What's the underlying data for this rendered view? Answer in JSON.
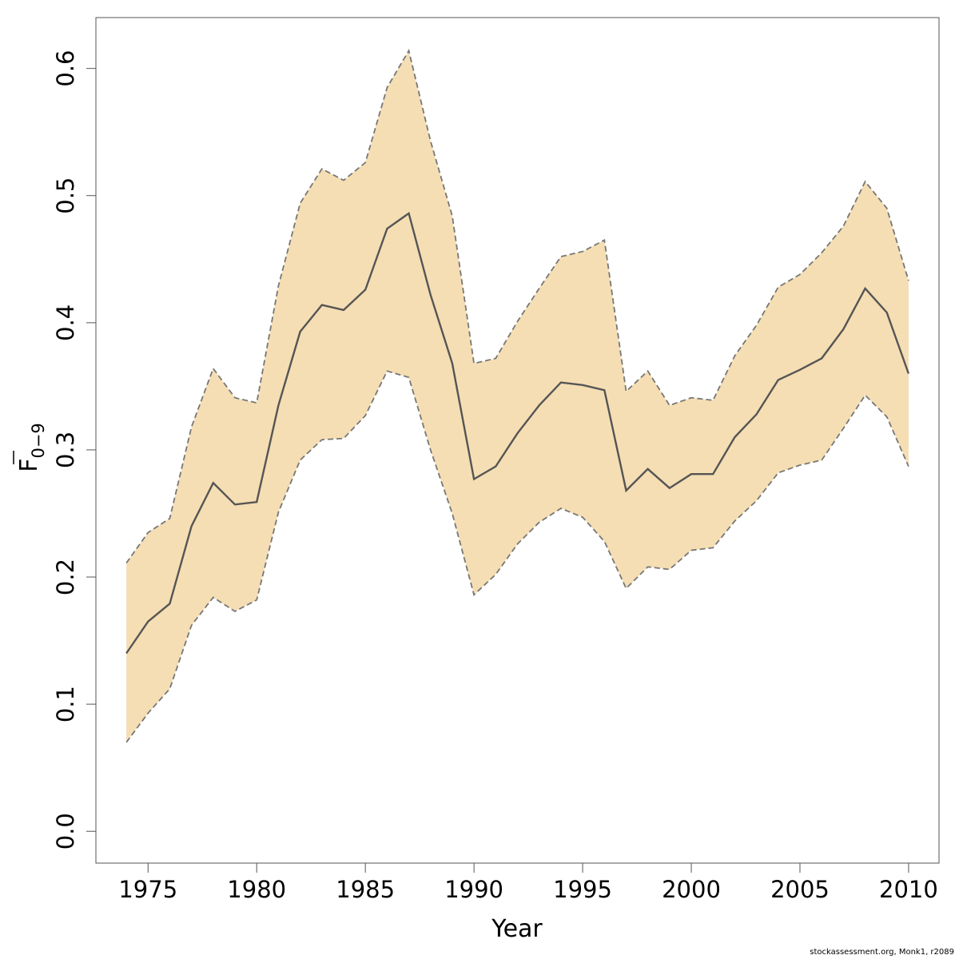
{
  "chart_data": {
    "type": "area",
    "xlabel": "Year",
    "ylabel_main": "F",
    "ylabel_subscript": "0−9",
    "xlim": [
      1972.6,
      2011.4
    ],
    "ylim": [
      -0.025,
      0.64
    ],
    "x_ticks": [
      1975,
      1980,
      1985,
      1990,
      1995,
      2000,
      2005,
      2010
    ],
    "y_ticks": [
      0.0,
      0.1,
      0.2,
      0.3,
      0.4,
      0.5,
      0.6
    ],
    "y_tick_labels": [
      "0.0",
      "0.1",
      "0.2",
      "0.3",
      "0.4",
      "0.5",
      "0.6"
    ],
    "band_color": "#F5DEB3",
    "line_color": "#555555",
    "bound_color": "#777777",
    "x": [
      1974,
      1975,
      1976,
      1977,
      1978,
      1979,
      1980,
      1981,
      1982,
      1983,
      1984,
      1985,
      1986,
      1987,
      1988,
      1989,
      1990,
      1991,
      1992,
      1993,
      1994,
      1995,
      1996,
      1997,
      1998,
      1999,
      2000,
      2001,
      2002,
      2003,
      2004,
      2005,
      2006,
      2007,
      2008,
      2009,
      2010
    ],
    "series": [
      {
        "role": "estimate",
        "values": [
          0.14,
          0.165,
          0.179,
          0.24,
          0.274,
          0.257,
          0.259,
          0.335,
          0.393,
          0.414,
          0.41,
          0.426,
          0.474,
          0.486,
          0.422,
          0.368,
          0.277,
          0.287,
          0.313,
          0.335,
          0.353,
          0.351,
          0.347,
          0.268,
          0.285,
          0.27,
          0.281,
          0.281,
          0.31,
          0.328,
          0.355,
          0.363,
          0.372,
          0.395,
          0.427,
          0.408,
          0.36
        ]
      },
      {
        "role": "upper",
        "values": [
          0.211,
          0.235,
          0.246,
          0.318,
          0.364,
          0.341,
          0.337,
          0.429,
          0.494,
          0.521,
          0.512,
          0.526,
          0.585,
          0.614,
          0.543,
          0.484,
          0.368,
          0.372,
          0.401,
          0.427,
          0.452,
          0.456,
          0.465,
          0.346,
          0.362,
          0.335,
          0.341,
          0.339,
          0.374,
          0.398,
          0.428,
          0.438,
          0.455,
          0.476,
          0.511,
          0.49,
          0.433
        ]
      },
      {
        "role": "lower",
        "values": [
          0.07,
          0.093,
          0.112,
          0.162,
          0.184,
          0.173,
          0.182,
          0.251,
          0.292,
          0.308,
          0.309,
          0.327,
          0.362,
          0.357,
          0.3,
          0.25,
          0.186,
          0.202,
          0.226,
          0.243,
          0.254,
          0.247,
          0.228,
          0.191,
          0.208,
          0.206,
          0.221,
          0.223,
          0.244,
          0.26,
          0.282,
          0.288,
          0.292,
          0.317,
          0.343,
          0.326,
          0.287
        ]
      }
    ]
  },
  "footer": {
    "note": "stockassessment.org, Monk1, r2089"
  }
}
